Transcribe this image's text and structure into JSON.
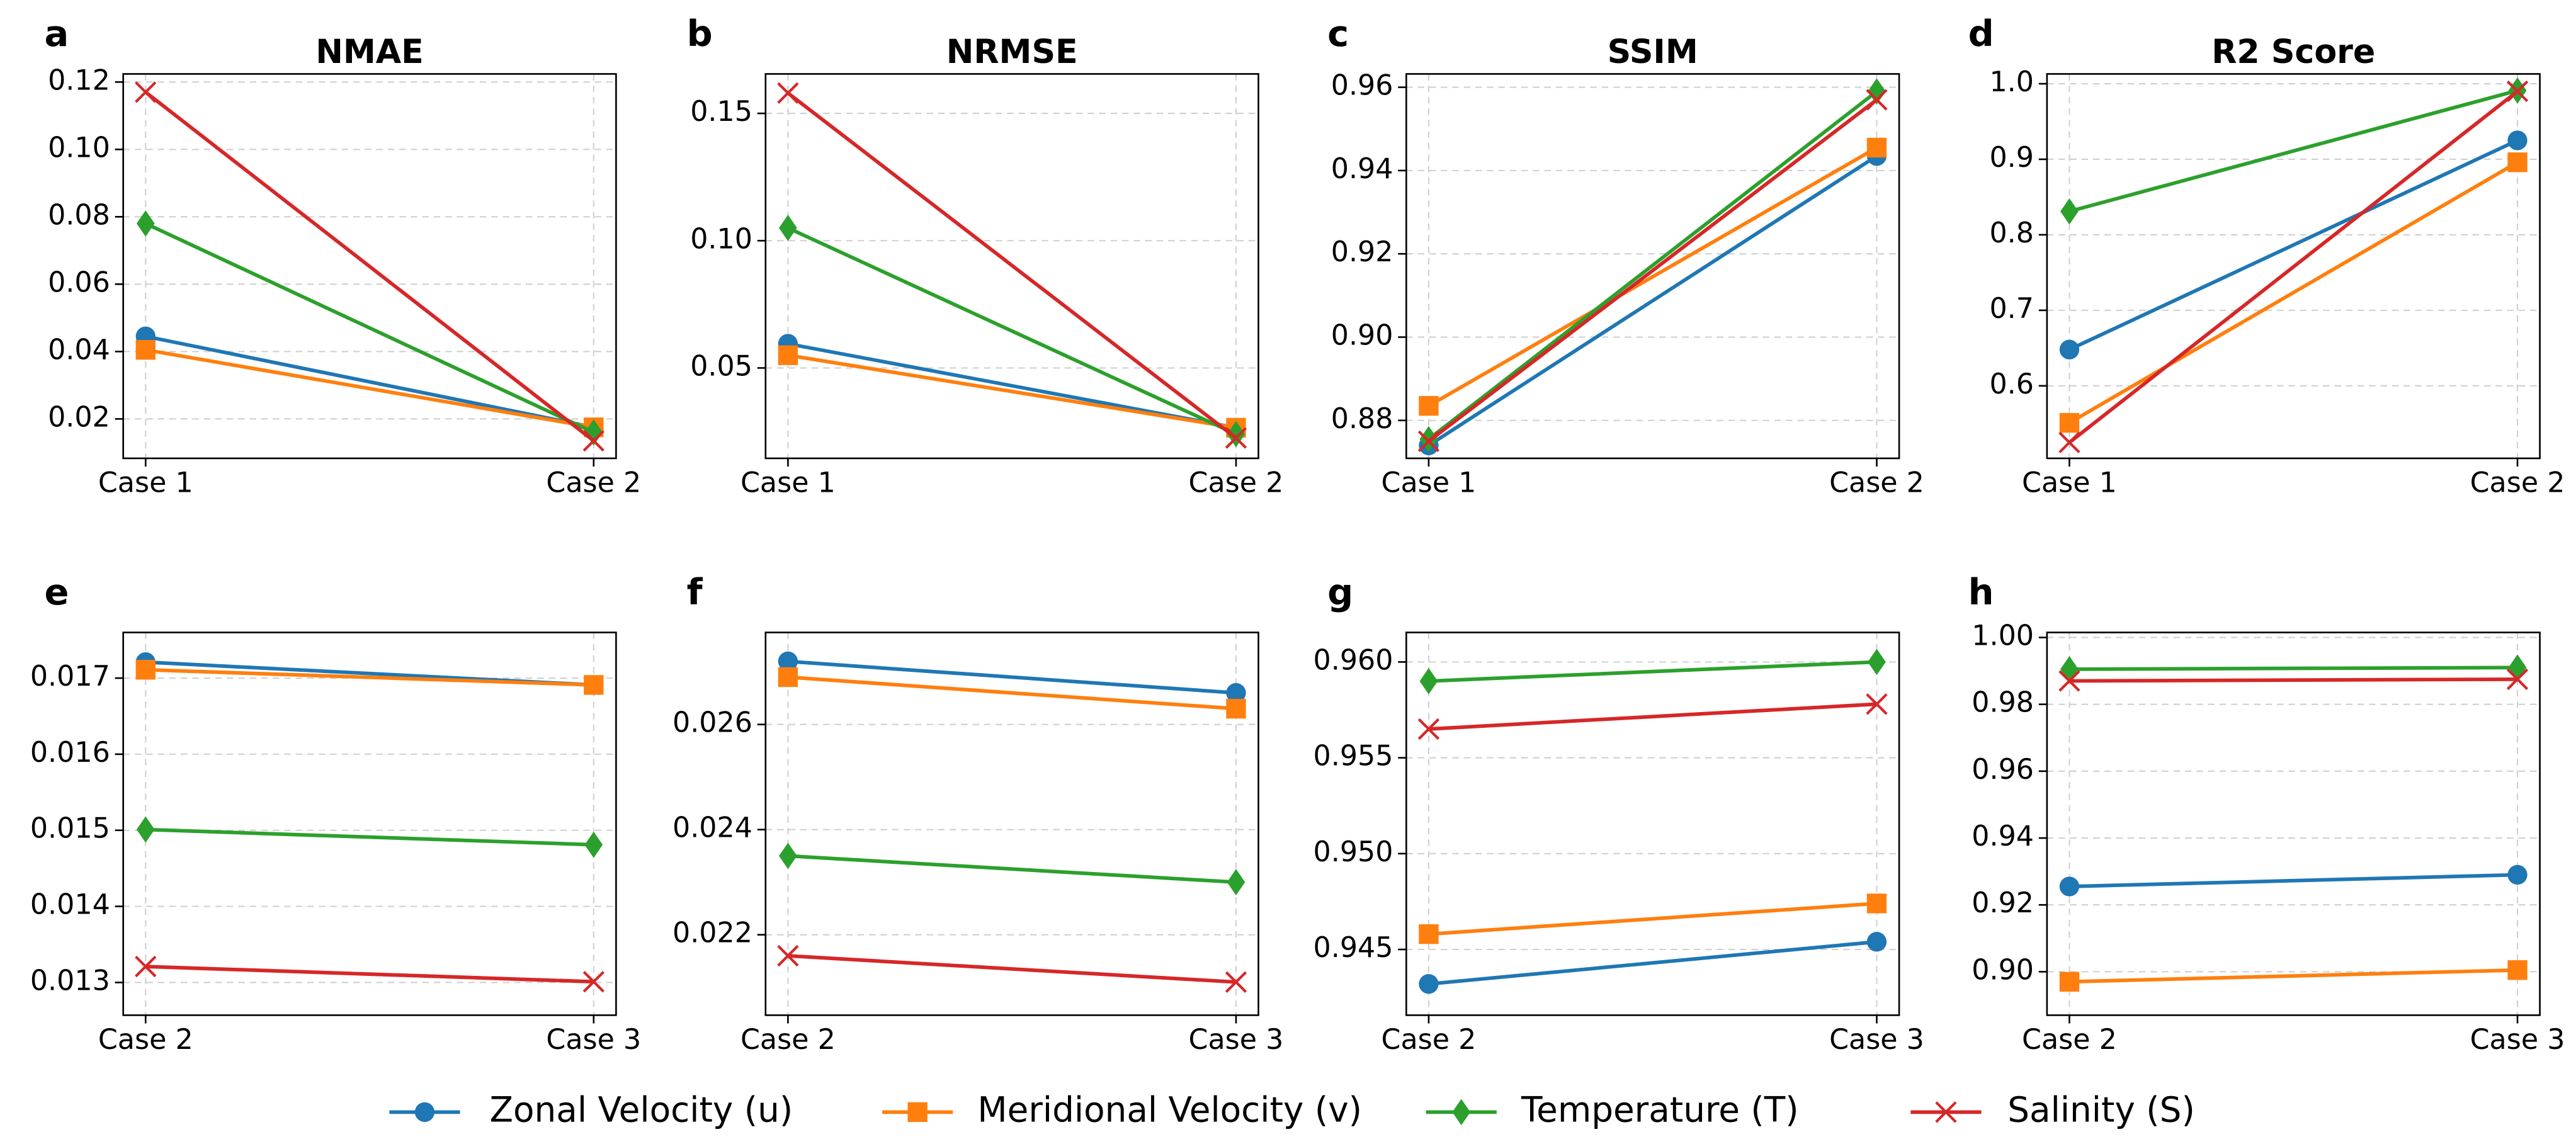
{
  "legend": [
    {
      "name": "Zonal Velocity (u)",
      "color": "#1f77b4",
      "marker": "circle"
    },
    {
      "name": "Meridional Velocity (v)",
      "color": "#ff7f0e",
      "marker": "square"
    },
    {
      "name": "Temperature (T)",
      "color": "#2ca02c",
      "marker": "diamond"
    },
    {
      "name": "Salinity (S)",
      "color": "#d62728",
      "marker": "x"
    }
  ],
  "chart_data": [
    {
      "type": "line",
      "panel": "a",
      "title": "NMAE",
      "categories": [
        "Case 1",
        "Case 2"
      ],
      "grid": true,
      "ylim": [
        0.0083,
        0.1224
      ],
      "yticks": [
        0.02,
        0.04,
        0.06,
        0.08,
        {
          "value": 0.1,
          "label": "0.10"
        },
        0.12
      ],
      "series": [
        {
          "values": [
            0.0445,
            0.0175
          ]
        },
        {
          "values": [
            0.0405,
            0.0175
          ]
        },
        {
          "values": [
            0.078,
            0.016
          ]
        },
        {
          "values": [
            0.117,
            0.0135
          ]
        }
      ]
    },
    {
      "type": "line",
      "panel": "b",
      "title": "NRMSE",
      "categories": [
        "Case 1",
        "Case 2"
      ],
      "grid": true,
      "ylim": [
        0.0145,
        0.1655
      ],
      "yticks": [
        0.05,
        {
          "value": 0.1,
          "label": "0.10"
        },
        0.15
      ],
      "series": [
        {
          "values": [
            0.0595,
            0.0265
          ]
        },
        {
          "values": [
            0.055,
            0.0265
          ]
        },
        {
          "values": [
            0.105,
            0.024
          ]
        },
        {
          "values": [
            0.158,
            0.0225
          ]
        }
      ]
    },
    {
      "type": "line",
      "panel": "c",
      "title": "SSIM",
      "categories": [
        "Case 1",
        "Case 2"
      ],
      "grid": true,
      "ylim": [
        0.8709,
        0.9632
      ],
      "yticks": [
        0.88,
        {
          "value": 0.9,
          "label": "0.90"
        },
        0.92,
        0.94,
        0.96
      ],
      "series": [
        {
          "values": [
            0.874,
            0.9435
          ]
        },
        {
          "values": [
            0.8835,
            0.9455
          ]
        },
        {
          "values": [
            0.8755,
            0.959
          ]
        },
        {
          "values": [
            0.875,
            0.957
          ]
        }
      ]
    },
    {
      "type": "line",
      "panel": "d",
      "title": "R2 Score",
      "categories": [
        "Case 1",
        "Case 2"
      ],
      "grid": true,
      "ylim": [
        0.504,
        1.013
      ],
      "yticks": [
        0.6,
        0.7,
        0.8,
        0.9,
        {
          "value": 1,
          "label": "1.0"
        }
      ],
      "series": [
        {
          "values": [
            0.648,
            0.925
          ]
        },
        {
          "values": [
            0.551,
            0.896
          ]
        },
        {
          "values": [
            0.831,
            0.991
          ]
        },
        {
          "values": [
            0.525,
            0.99
          ]
        }
      ]
    },
    {
      "type": "line",
      "panel": "e",
      "categories": [
        "Case 2",
        "Case 3"
      ],
      "grid": true,
      "ylim": [
        0.01257,
        0.0176
      ],
      "yticks": [
        0.013,
        0.014,
        0.015,
        0.016,
        0.017
      ],
      "series": [
        {
          "values": [
            0.01721,
            0.01691
          ]
        },
        {
          "values": [
            0.01711,
            0.01691
          ]
        },
        {
          "values": [
            0.01501,
            0.01481
          ]
        },
        {
          "values": [
            0.01321,
            0.01301
          ]
        }
      ]
    },
    {
      "type": "line",
      "panel": "f",
      "categories": [
        "Case 2",
        "Case 3"
      ],
      "grid": true,
      "ylim": [
        0.02047,
        0.02775
      ],
      "yticks": [
        0.022,
        0.024,
        0.026
      ],
      "series": [
        {
          "values": [
            0.0272,
            0.0266
          ]
        },
        {
          "values": [
            0.0269,
            0.0263
          ]
        },
        {
          "values": [
            0.0235,
            0.023
          ]
        },
        {
          "values": [
            0.0216,
            0.0211
          ]
        }
      ]
    },
    {
      "type": "line",
      "panel": "g",
      "categories": [
        "Case 2",
        "Case 3"
      ],
      "grid": true,
      "ylim": [
        0.94157,
        0.96154
      ],
      "yticks": [
        0.945,
        {
          "value": 0.95,
          "label": "0.950"
        },
        0.955,
        {
          "value": 0.96,
          "label": "0.960"
        }
      ],
      "series": [
        {
          "values": [
            0.9432,
            0.9454
          ]
        },
        {
          "values": [
            0.9458,
            0.9474
          ]
        },
        {
          "values": [
            0.959,
            0.96
          ]
        },
        {
          "values": [
            0.9565,
            0.9578
          ]
        }
      ]
    },
    {
      "type": "line",
      "panel": "h",
      "categories": [
        "Case 2",
        "Case 3"
      ],
      "grid": true,
      "ylim": [
        0.887,
        1.0015
      ],
      "yticks": [
        {
          "value": 0.9,
          "label": "0.90"
        },
        0.92,
        0.94,
        0.96,
        0.98,
        {
          "value": 1,
          "label": "1.00"
        }
      ],
      "series": [
        {
          "values": [
            0.9255,
            0.929
          ]
        },
        {
          "values": [
            0.897,
            0.9005
          ]
        },
        {
          "values": [
            0.9905,
            0.991
          ]
        },
        {
          "values": [
            0.987,
            0.9875
          ]
        }
      ]
    }
  ]
}
